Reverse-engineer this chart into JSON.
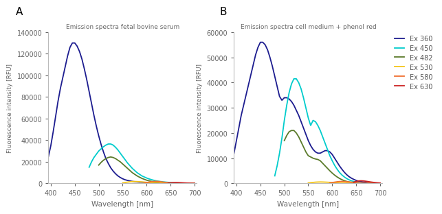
{
  "title_A": "Emission spectra fetal bovine serum",
  "title_B": "Emission spectra cell medium + phenol red",
  "ylabel": "Fluorescence intensity [RFU]",
  "xlabel": "Wavelength [nm]",
  "label_A": "A",
  "label_B": "B",
  "legend_labels": [
    "Ex 360",
    "Ex 450",
    "Ex 482",
    "Ex 530",
    "Ex 580",
    "Ex 630"
  ],
  "colors": [
    "#1c1c8f",
    "#00cccc",
    "#5a7a2a",
    "#f5c518",
    "#f07030",
    "#cc2222"
  ],
  "xlim": [
    395,
    705
  ],
  "ylim_A": [
    0,
    140000
  ],
  "ylim_B": [
    0,
    60000
  ],
  "yticks_A": [
    0,
    20000,
    40000,
    60000,
    80000,
    100000,
    120000,
    140000
  ],
  "yticks_B": [
    0,
    10000,
    20000,
    30000,
    40000,
    50000,
    60000
  ],
  "background_color": "#ffffff",
  "fbs_ex360": {
    "x": [
      395,
      400,
      405,
      410,
      415,
      420,
      425,
      430,
      435,
      440,
      445,
      450,
      455,
      460,
      465,
      470,
      475,
      480,
      485,
      490,
      495,
      500,
      505,
      510,
      515,
      520,
      525,
      530,
      535,
      540,
      545,
      550,
      555,
      560,
      565,
      570,
      575,
      580,
      585,
      590,
      595,
      600,
      605,
      610,
      615,
      620,
      625,
      630,
      635,
      640,
      645,
      650,
      655,
      660,
      665,
      670,
      675,
      680,
      685,
      690,
      695,
      700
    ],
    "y": [
      25000,
      35000,
      48000,
      62000,
      76000,
      88000,
      98000,
      108000,
      118000,
      126000,
      130000,
      130000,
      127000,
      122000,
      115000,
      106000,
      96000,
      85000,
      74000,
      63000,
      53000,
      44000,
      36000,
      29000,
      23000,
      18500,
      14500,
      11500,
      9000,
      7000,
      5500,
      4300,
      3400,
      2800,
      2300,
      1900,
      1600,
      1400,
      1200,
      1100,
      1000,
      900,
      800,
      750,
      700,
      650,
      600,
      550,
      500,
      450,
      400,
      350,
      300,
      280,
      260,
      240,
      220,
      200,
      180,
      160,
      140,
      130
    ]
  },
  "fbs_ex450": {
    "x": [
      480,
      485,
      490,
      495,
      500,
      505,
      510,
      515,
      520,
      525,
      530,
      535,
      540,
      545,
      550,
      555,
      560,
      565,
      570,
      575,
      580,
      585,
      590,
      595,
      600,
      605,
      610,
      615,
      620,
      625,
      630,
      635,
      640,
      645,
      650,
      655,
      660,
      665,
      670,
      675,
      680,
      685,
      690,
      695,
      700
    ],
    "y": [
      15000,
      20000,
      24000,
      27000,
      30000,
      32000,
      34000,
      35500,
      36500,
      36500,
      35500,
      33500,
      31000,
      28000,
      25000,
      22000,
      19000,
      16500,
      14000,
      12000,
      10000,
      8500,
      7000,
      6000,
      5000,
      4200,
      3500,
      2900,
      2400,
      2000,
      1700,
      1400,
      1200,
      1000,
      850,
      700,
      600,
      500,
      420,
      360,
      300,
      260,
      220,
      190,
      160
    ]
  },
  "fbs_ex482": {
    "x": [
      500,
      505,
      510,
      515,
      520,
      525,
      530,
      535,
      540,
      545,
      550,
      555,
      560,
      565,
      570,
      575,
      580,
      585,
      590,
      595,
      600,
      605,
      610,
      615,
      620,
      625,
      630,
      635,
      640,
      645,
      650,
      655,
      660,
      665,
      670,
      675,
      680,
      685,
      690,
      695,
      700
    ],
    "y": [
      17000,
      19500,
      21500,
      23000,
      24000,
      24500,
      24000,
      23000,
      21500,
      20000,
      18000,
      16000,
      14000,
      12000,
      10000,
      8500,
      7000,
      5800,
      4700,
      3800,
      3000,
      2400,
      1900,
      1500,
      1200,
      950,
      750,
      600,
      490,
      400,
      330,
      270,
      220,
      185,
      155,
      130,
      110,
      90,
      75,
      60,
      50
    ]
  },
  "fbs_ex530": {
    "x": [
      550,
      555,
      560,
      565,
      570,
      575,
      580,
      585,
      590,
      595,
      600,
      605,
      610,
      615,
      620,
      625,
      630,
      635,
      640,
      645,
      650,
      655,
      660,
      665,
      670,
      675,
      680,
      685,
      690,
      695,
      700
    ],
    "y": [
      500,
      800,
      1200,
      1500,
      1700,
      1800,
      1700,
      1600,
      1400,
      1200,
      1000,
      850,
      700,
      580,
      470,
      380,
      300,
      240,
      190,
      150,
      120,
      95,
      75,
      58,
      45,
      34,
      26,
      20,
      15,
      11,
      8
    ]
  },
  "fbs_ex580": {
    "x": [
      595,
      600,
      605,
      610,
      615,
      620,
      625,
      630,
      635,
      640,
      645,
      650,
      655,
      660,
      665,
      670,
      675,
      680,
      685,
      690,
      695,
      700
    ],
    "y": [
      500,
      800,
      1200,
      1600,
      1900,
      2000,
      1800,
      1500,
      1200,
      950,
      750,
      580,
      450,
      340,
      260,
      195,
      145,
      108,
      80,
      58,
      42,
      30
    ]
  },
  "fbs_ex630": {
    "x": [
      645,
      650,
      655,
      660,
      665,
      670,
      675,
      680,
      685,
      690,
      695,
      700
    ],
    "y": [
      300,
      500,
      700,
      800,
      780,
      700,
      580,
      460,
      350,
      260,
      190,
      135
    ]
  },
  "dmem_ex360": {
    "x": [
      395,
      400,
      405,
      410,
      415,
      420,
      425,
      430,
      435,
      440,
      445,
      450,
      455,
      460,
      465,
      470,
      475,
      480,
      485,
      490,
      495,
      500,
      505,
      510,
      515,
      520,
      525,
      530,
      535,
      540,
      545,
      550,
      555,
      560,
      565,
      570,
      575,
      580,
      585,
      590,
      595,
      600,
      605,
      610,
      615,
      620,
      625,
      630,
      635,
      640,
      645,
      650,
      655,
      660,
      665,
      670,
      675,
      680,
      685,
      690,
      695,
      700
    ],
    "y": [
      12000,
      17000,
      22000,
      27000,
      31000,
      35000,
      39000,
      43000,
      47000,
      51000,
      54000,
      56000,
      56000,
      55000,
      53000,
      50000,
      46500,
      42500,
      38500,
      34500,
      33000,
      34000,
      34000,
      33500,
      32500,
      31000,
      29000,
      27000,
      24500,
      22000,
      19500,
      17000,
      15000,
      13500,
      12500,
      12000,
      12000,
      12500,
      13000,
      13000,
      12500,
      11500,
      10000,
      8500,
      7000,
      5700,
      4500,
      3500,
      2700,
      2100,
      1600,
      1200,
      900,
      700,
      550,
      420,
      320,
      240,
      180,
      140,
      100,
      80
    ]
  },
  "dmem_ex450": {
    "x": [
      480,
      485,
      490,
      495,
      500,
      505,
      510,
      515,
      520,
      525,
      530,
      535,
      540,
      545,
      550,
      555,
      560,
      565,
      570,
      575,
      580,
      585,
      590,
      595,
      600,
      605,
      610,
      615,
      620,
      625,
      630,
      635,
      640,
      645,
      650,
      655,
      660,
      665,
      670,
      675,
      680,
      685,
      690,
      695,
      700
    ],
    "y": [
      3000,
      7000,
      12000,
      18000,
      25000,
      31000,
      36000,
      39500,
      41500,
      41500,
      40000,
      37500,
      34000,
      30000,
      26000,
      23000,
      25000,
      24500,
      23000,
      21000,
      18500,
      16000,
      13500,
      11000,
      9000,
      7200,
      5700,
      4400,
      3400,
      2600,
      1950,
      1450,
      1050,
      750,
      530,
      370,
      255,
      175,
      120,
      80,
      55,
      38,
      26,
      18,
      12
    ]
  },
  "dmem_ex482": {
    "x": [
      500,
      505,
      510,
      515,
      520,
      525,
      530,
      535,
      540,
      545,
      550,
      555,
      560,
      565,
      570,
      575,
      580,
      585,
      590,
      595,
      600,
      605,
      610,
      615,
      620,
      625,
      630,
      635,
      640,
      645,
      650,
      655,
      660,
      665,
      670,
      675,
      680,
      685,
      690,
      695,
      700
    ],
    "y": [
      17000,
      19000,
      20500,
      21000,
      21000,
      20000,
      18500,
      16500,
      14500,
      12500,
      11000,
      10500,
      10000,
      9700,
      9500,
      9000,
      8000,
      7000,
      6000,
      5000,
      4100,
      3300,
      2600,
      2000,
      1500,
      1100,
      800,
      560,
      380,
      260,
      170,
      110,
      70,
      45,
      30,
      20,
      13,
      9,
      6,
      4,
      3
    ]
  },
  "dmem_ex530": {
    "x": [
      550,
      555,
      560,
      565,
      570,
      575,
      580,
      585,
      590,
      595,
      600,
      605,
      610,
      615,
      620,
      625,
      630,
      635,
      640,
      645,
      650,
      655,
      660,
      665,
      670,
      675,
      680,
      685,
      690,
      695,
      700
    ],
    "y": [
      200,
      300,
      400,
      500,
      550,
      580,
      560,
      520,
      470,
      420,
      370,
      320,
      270,
      225,
      185,
      150,
      120,
      95,
      74,
      57,
      43,
      33,
      25,
      18,
      13,
      10,
      7,
      5,
      4,
      3,
      2
    ]
  },
  "dmem_ex580": {
    "x": [
      595,
      600,
      605,
      610,
      615,
      620,
      625,
      630,
      635,
      640,
      645,
      650,
      655,
      660,
      665,
      670,
      675,
      680,
      685,
      690,
      695,
      700
    ],
    "y": [
      200,
      350,
      500,
      650,
      750,
      780,
      750,
      680,
      600,
      510,
      420,
      340,
      265,
      200,
      150,
      110,
      80,
      57,
      40,
      28,
      19,
      13
    ]
  },
  "dmem_ex630": {
    "x": [
      645,
      650,
      655,
      660,
      665,
      670,
      675,
      680,
      685,
      690,
      695,
      700
    ],
    "y": [
      500,
      800,
      1000,
      1050,
      1000,
      880,
      730,
      580,
      445,
      330,
      240,
      170
    ]
  }
}
